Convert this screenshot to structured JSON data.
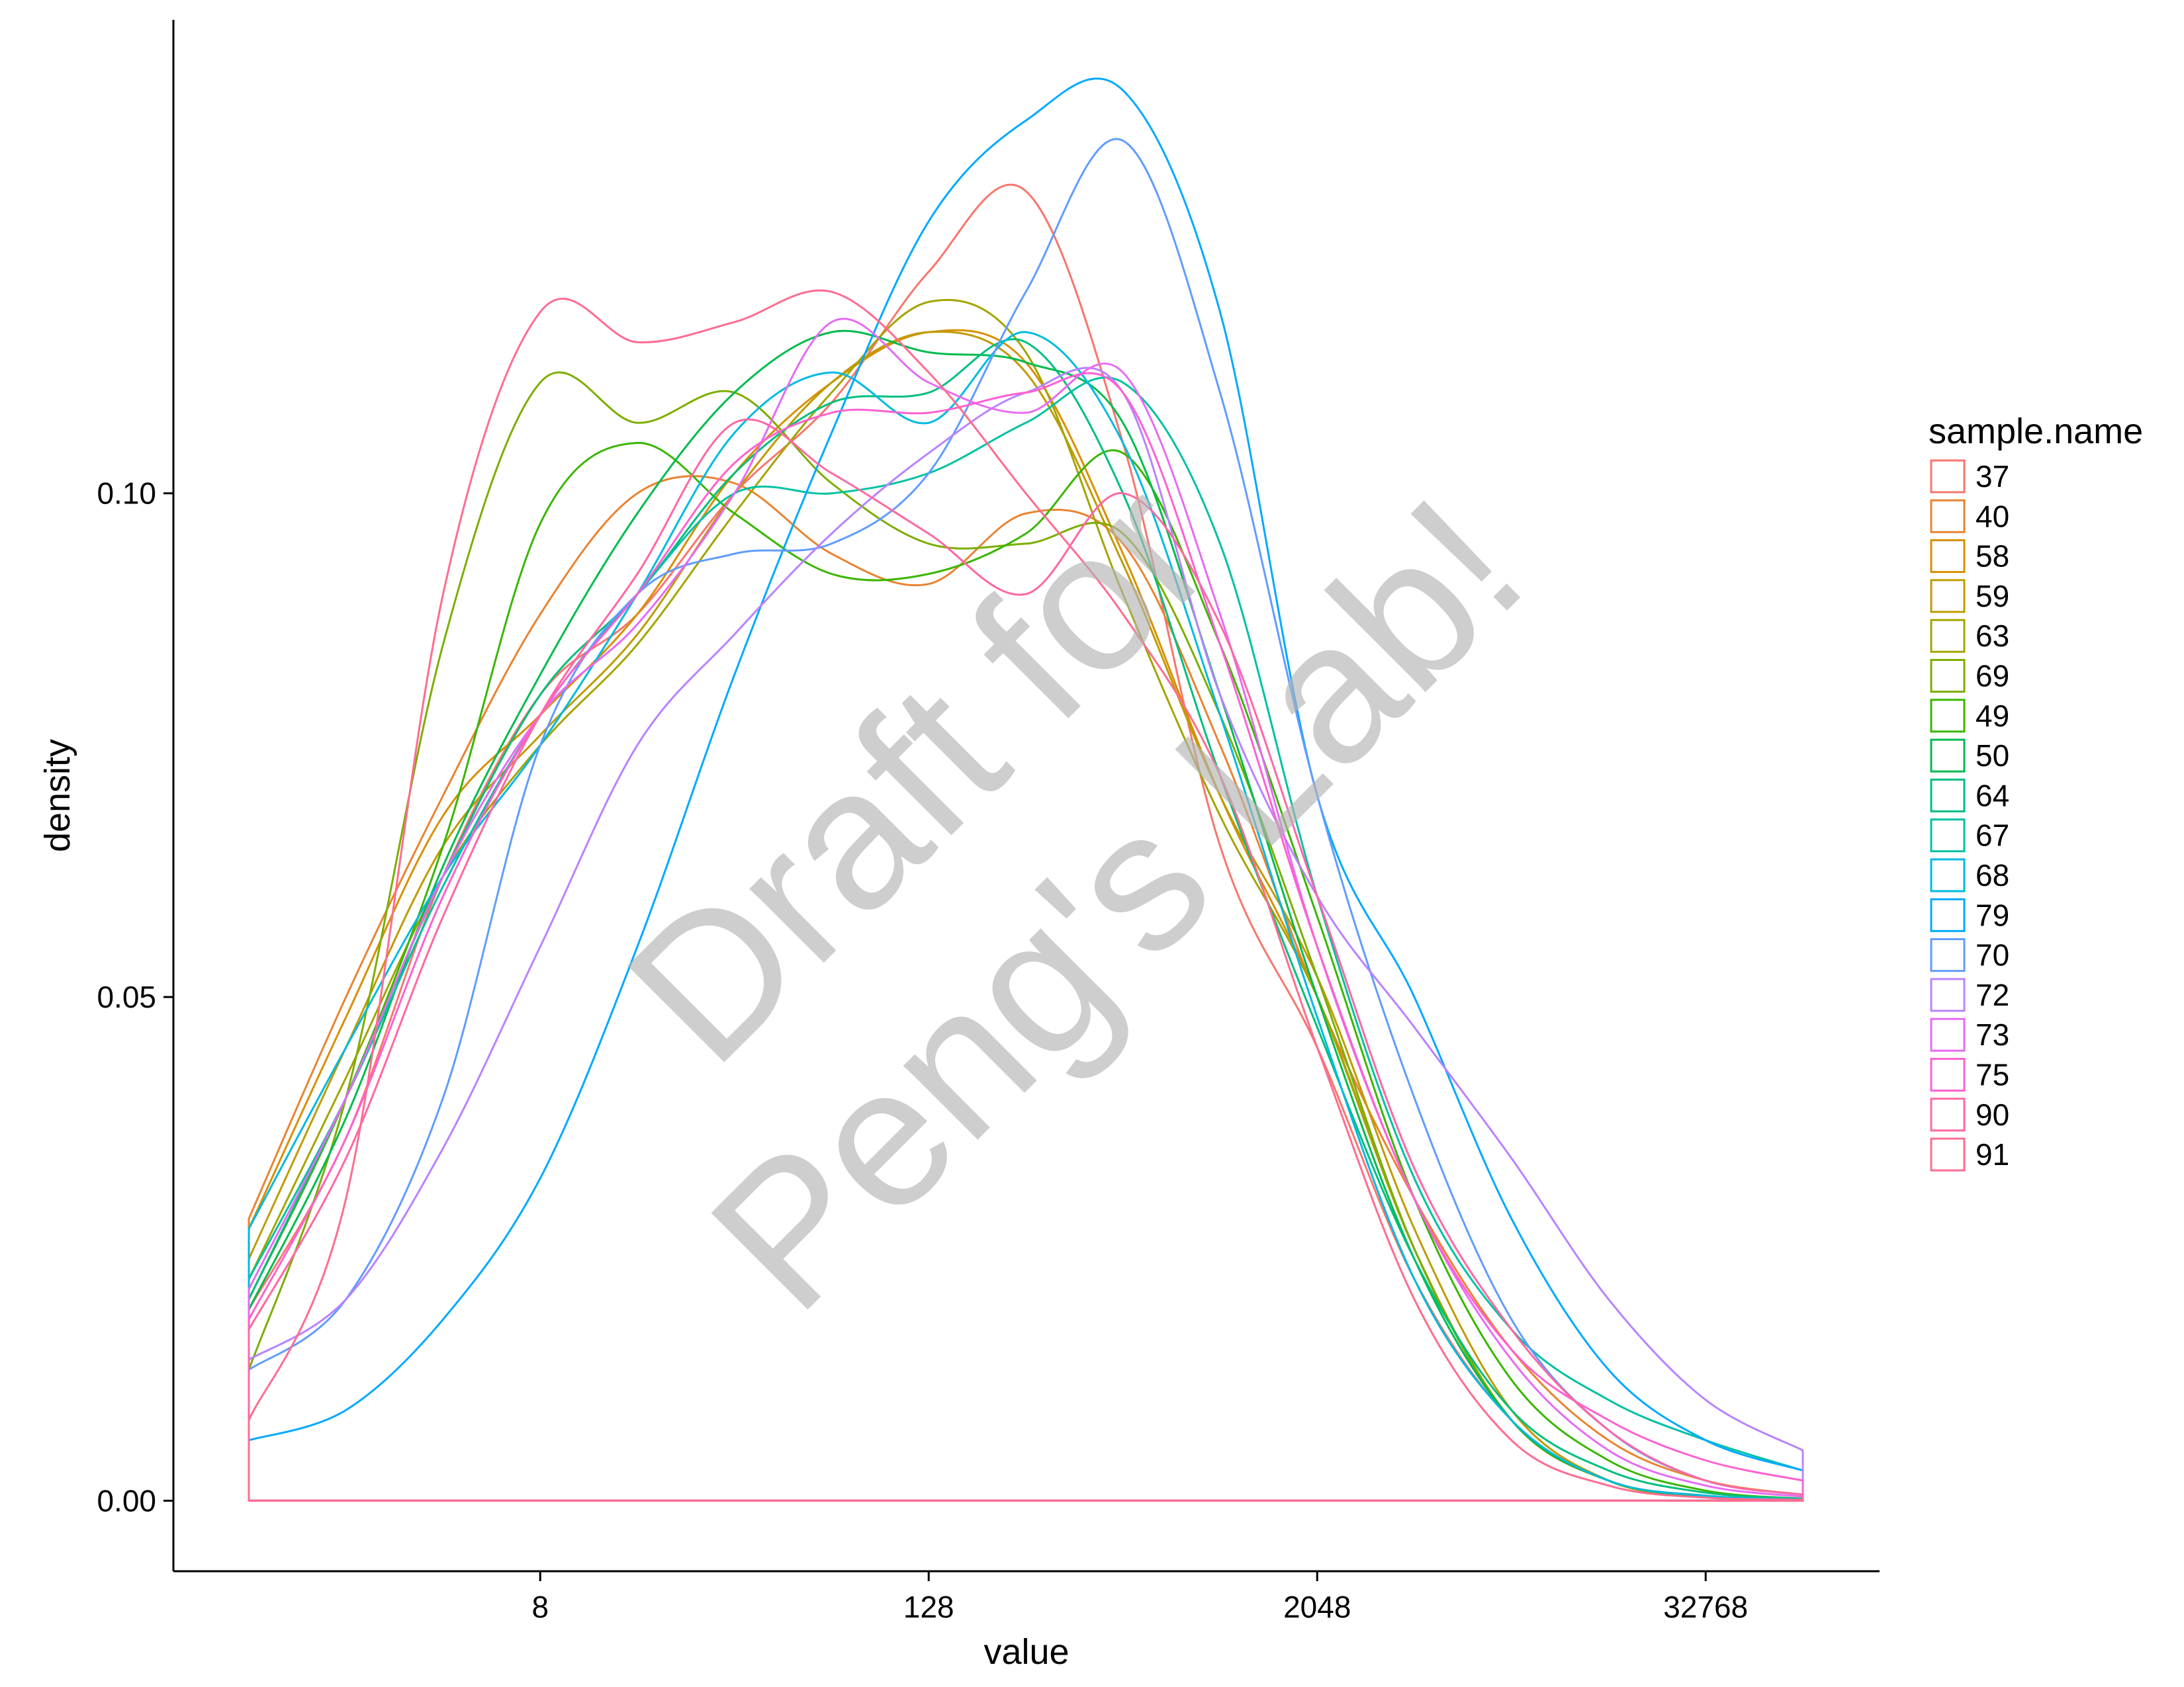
{
  "chart_data": {
    "type": "line",
    "xlabel": "value",
    "ylabel": "density",
    "x_scale": "log2",
    "x_ticks": [
      8,
      128,
      2048,
      32768
    ],
    "x_tick_labels": [
      "8",
      "128",
      "2048",
      "32768"
    ],
    "xlim": [
      1,
      65536
    ],
    "y_ticks": [
      0.0,
      0.05,
      0.1
    ],
    "y_tick_labels": [
      "0.00",
      "0.05",
      "0.10"
    ],
    "ylim": [
      -0.007,
      0.147
    ],
    "grid": false,
    "legend": {
      "title": "sample.name",
      "position": "right"
    },
    "series": [
      {
        "name": "37",
        "color": "#F8766D",
        "x": [
          1,
          2,
          4,
          8,
          16,
          32,
          64,
          128,
          256,
          512,
          1024,
          2048,
          4096,
          8192,
          16384,
          32768,
          65536
        ],
        "y": [
          0.019,
          0.036,
          0.062,
          0.08,
          0.088,
          0.1,
          0.109,
          0.122,
          0.13,
          0.105,
          0.065,
          0.045,
          0.022,
          0.008,
          0.002,
          0.0005,
          0.0001
        ]
      },
      {
        "name": "40",
        "color": "#EA8331",
        "x": [
          1,
          2,
          4,
          8,
          16,
          32,
          64,
          128,
          256,
          512,
          1024,
          2048,
          4096,
          8192,
          16384,
          32768,
          65536
        ],
        "y": [
          0.028,
          0.05,
          0.07,
          0.088,
          0.1,
          0.101,
          0.094,
          0.091,
          0.098,
          0.095,
          0.075,
          0.05,
          0.03,
          0.015,
          0.006,
          0.002,
          0.0006
        ]
      },
      {
        "name": "58",
        "color": "#D89000",
        "x": [
          1,
          2,
          4,
          8,
          16,
          32,
          64,
          128,
          256,
          512,
          1024,
          2048,
          4096,
          8192,
          16384,
          32768,
          65536
        ],
        "y": [
          0.027,
          0.048,
          0.068,
          0.078,
          0.088,
          0.102,
          0.111,
          0.116,
          0.113,
          0.094,
          0.07,
          0.05,
          0.025,
          0.008,
          0.002,
          0.0005,
          0.0001
        ]
      },
      {
        "name": "59",
        "color": "#C09B00",
        "x": [
          1,
          2,
          4,
          8,
          16,
          32,
          64,
          128,
          256,
          512,
          1024,
          2048,
          4096,
          8192,
          16384,
          32768,
          65536
        ],
        "y": [
          0.024,
          0.045,
          0.065,
          0.076,
          0.086,
          0.1,
          0.111,
          0.116,
          0.112,
          0.093,
          0.07,
          0.052,
          0.027,
          0.009,
          0.002,
          0.0004,
          0.0001
        ]
      },
      {
        "name": "63",
        "color": "#A3A500",
        "x": [
          1,
          2,
          4,
          8,
          16,
          32,
          64,
          128,
          256,
          512,
          1024,
          2048,
          4096,
          8192,
          16384,
          32768,
          65536
        ],
        "y": [
          0.022,
          0.042,
          0.062,
          0.075,
          0.085,
          0.098,
          0.11,
          0.119,
          0.114,
          0.09,
          0.068,
          0.05,
          0.025,
          0.008,
          0.002,
          0.0004,
          0.0001
        ]
      },
      {
        "name": "69",
        "color": "#7CAE00",
        "x": [
          1,
          2,
          4,
          8,
          16,
          32,
          64,
          128,
          256,
          512,
          1024,
          2048,
          4096,
          8192,
          16384,
          32768,
          65536
        ],
        "y": [
          0.013,
          0.04,
          0.085,
          0.111,
          0.107,
          0.11,
          0.101,
          0.095,
          0.095,
          0.096,
          0.078,
          0.052,
          0.025,
          0.008,
          0.002,
          0.0004,
          0.0001
        ]
      },
      {
        "name": "49",
        "color": "#39B600",
        "x": [
          1,
          2,
          4,
          8,
          16,
          32,
          64,
          128,
          256,
          512,
          1024,
          2048,
          4096,
          8192,
          16384,
          32768,
          65536
        ],
        "y": [
          0.02,
          0.04,
          0.065,
          0.097,
          0.105,
          0.098,
          0.092,
          0.092,
          0.096,
          0.104,
          0.085,
          0.058,
          0.03,
          0.012,
          0.004,
          0.001,
          0.0002
        ]
      },
      {
        "name": "50",
        "color": "#00BB4E",
        "x": [
          1,
          2,
          4,
          8,
          16,
          32,
          64,
          128,
          256,
          512,
          1024,
          2048,
          4096,
          8192,
          16384,
          32768,
          65536
        ],
        "y": [
          0.019,
          0.038,
          0.063,
          0.082,
          0.098,
          0.11,
          0.116,
          0.114,
          0.113,
          0.107,
          0.08,
          0.05,
          0.024,
          0.008,
          0.002,
          0.0004,
          0.0001
        ]
      },
      {
        "name": "64",
        "color": "#00BF7D",
        "x": [
          1,
          2,
          4,
          8,
          16,
          32,
          64,
          128,
          256,
          512,
          1024,
          2048,
          4096,
          8192,
          16384,
          32768,
          65536
        ],
        "y": [
          0.02,
          0.04,
          0.062,
          0.08,
          0.09,
          0.102,
          0.109,
          0.11,
          0.115,
          0.1,
          0.072,
          0.047,
          0.024,
          0.009,
          0.003,
          0.0008,
          0.0002
        ]
      },
      {
        "name": "67",
        "color": "#00C1A3",
        "x": [
          1,
          2,
          4,
          8,
          16,
          32,
          64,
          128,
          256,
          512,
          1024,
          2048,
          4096,
          8192,
          16384,
          32768,
          65536
        ],
        "y": [
          0.022,
          0.04,
          0.061,
          0.078,
          0.09,
          0.1,
          0.1,
          0.102,
          0.107,
          0.111,
          0.095,
          0.06,
          0.032,
          0.017,
          0.01,
          0.006,
          0.003
        ]
      },
      {
        "name": "68",
        "color": "#00BAE0",
        "x": [
          1,
          2,
          4,
          8,
          16,
          32,
          64,
          128,
          256,
          512,
          1024,
          2048,
          4096,
          8192,
          16384,
          32768,
          65536
        ],
        "y": [
          0.027,
          0.045,
          0.062,
          0.075,
          0.09,
          0.106,
          0.112,
          0.107,
          0.116,
          0.105,
          0.078,
          0.048,
          0.022,
          0.008,
          0.002,
          0.0005,
          0.0001
        ]
      },
      {
        "name": "79",
        "color": "#00A9FF",
        "x": [
          1,
          2,
          4,
          8,
          16,
          32,
          64,
          128,
          256,
          512,
          1024,
          2048,
          4096,
          8192,
          16384,
          32768,
          65536
        ],
        "y": [
          0.006,
          0.009,
          0.018,
          0.032,
          0.055,
          0.082,
          0.106,
          0.127,
          0.137,
          0.14,
          0.118,
          0.07,
          0.05,
          0.028,
          0.013,
          0.006,
          0.003
        ]
      },
      {
        "name": "70",
        "color": "#619CFF",
        "x": [
          1,
          2,
          4,
          8,
          16,
          32,
          64,
          128,
          256,
          512,
          1024,
          2048,
          4096,
          8192,
          16384,
          32768,
          65536
        ],
        "y": [
          0.013,
          0.02,
          0.04,
          0.075,
          0.09,
          0.094,
          0.095,
          0.102,
          0.12,
          0.135,
          0.11,
          0.07,
          0.04,
          0.018,
          0.007,
          0.002,
          0.0006
        ]
      },
      {
        "name": "72",
        "color": "#B983FF",
        "x": [
          1,
          2,
          4,
          8,
          16,
          32,
          64,
          128,
          256,
          512,
          1024,
          2048,
          4096,
          8192,
          16384,
          32768,
          65536
        ],
        "y": [
          0.014,
          0.02,
          0.035,
          0.055,
          0.075,
          0.086,
          0.096,
          0.104,
          0.11,
          0.11,
          0.08,
          0.06,
          0.047,
          0.034,
          0.02,
          0.01,
          0.005
        ]
      },
      {
        "name": "73",
        "color": "#E76BF3",
        "x": [
          1,
          2,
          4,
          8,
          16,
          32,
          64,
          128,
          256,
          512,
          1024,
          2048,
          4096,
          8192,
          16384,
          32768,
          65536
        ],
        "y": [
          0.021,
          0.04,
          0.062,
          0.078,
          0.087,
          0.1,
          0.117,
          0.111,
          0.108,
          0.112,
          0.088,
          0.055,
          0.03,
          0.014,
          0.005,
          0.0015,
          0.0004
        ]
      },
      {
        "name": "75",
        "color": "#FD61D1",
        "x": [
          1,
          2,
          4,
          8,
          16,
          32,
          64,
          128,
          256,
          512,
          1024,
          2048,
          4096,
          8192,
          16384,
          32768,
          65536
        ],
        "y": [
          0.018,
          0.036,
          0.06,
          0.078,
          0.09,
          0.103,
          0.108,
          0.108,
          0.11,
          0.11,
          0.085,
          0.055,
          0.03,
          0.015,
          0.008,
          0.004,
          0.002
        ]
      },
      {
        "name": "90",
        "color": "#FF67A4",
        "x": [
          1,
          2,
          4,
          8,
          16,
          32,
          64,
          128,
          256,
          512,
          1024,
          2048,
          4096,
          8192,
          16384,
          32768,
          65536
        ],
        "y": [
          0.017,
          0.034,
          0.058,
          0.078,
          0.092,
          0.107,
          0.102,
          0.096,
          0.09,
          0.1,
          0.087,
          0.06,
          0.033,
          0.017,
          0.007,
          0.002,
          0.0006
        ]
      },
      {
        "name": "91",
        "color": "#FF6C91",
        "x": [
          1,
          2,
          4,
          8,
          16,
          32,
          64,
          128,
          256,
          512,
          1024,
          2048,
          4096,
          8192,
          16384,
          32768,
          65536
        ],
        "y": [
          0.008,
          0.03,
          0.09,
          0.118,
          0.115,
          0.117,
          0.12,
          0.112,
          0.1,
          0.088,
          0.072,
          0.045,
          0.02,
          0.006,
          0.0015,
          0.0003,
          0.0001
        ]
      }
    ]
  },
  "watermark": {
    "line1": "Draft for",
    "line2": "Peng's Lab!"
  }
}
